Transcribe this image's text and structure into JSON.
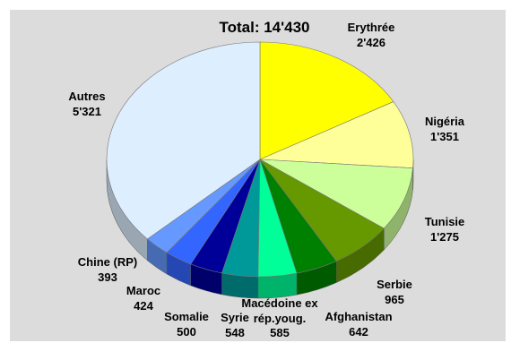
{
  "chart_data": {
    "type": "pie",
    "title": "Total: 14'430",
    "slices": [
      {
        "label": "Erythrée",
        "value": 2426,
        "value_text": "2'426",
        "color": "#ffff00",
        "side": "#b3b300"
      },
      {
        "label": "Nigéria",
        "value": 1351,
        "value_text": "1'351",
        "color": "#ffff99",
        "side": "#b3b36b"
      },
      {
        "label": "Tunisie",
        "value": 1275,
        "value_text": "1'275",
        "color": "#ccff99",
        "side": "#8fb36b"
      },
      {
        "label": "Serbie",
        "value": 965,
        "value_text": "965",
        "color": "#669900",
        "side": "#476b00"
      },
      {
        "label": "Afghanistan",
        "value": 642,
        "value_text": "642",
        "color": "#008000",
        "side": "#005a00"
      },
      {
        "label": "Macédoine ex rép.youg.",
        "value": 585,
        "value_text": "585",
        "color": "#00ff99",
        "side": "#00b36b"
      },
      {
        "label": "Syrie",
        "value": 548,
        "value_text": "548",
        "color": "#009999",
        "side": "#006b6b"
      },
      {
        "label": "Somalie",
        "value": 500,
        "value_text": "500",
        "color": "#000099",
        "side": "#00006b"
      },
      {
        "label": "Maroc",
        "value": 424,
        "value_text": "424",
        "color": "#3366ff",
        "side": "#2447b3"
      },
      {
        "label": "Chine (RP)",
        "value": 393,
        "value_text": "393",
        "color": "#6699ff",
        "side": "#476bb3"
      },
      {
        "label": "Autres",
        "value": 5321,
        "value_text": "5'321",
        "color": "#ddeeff",
        "side": "#9aa7b3"
      }
    ]
  }
}
